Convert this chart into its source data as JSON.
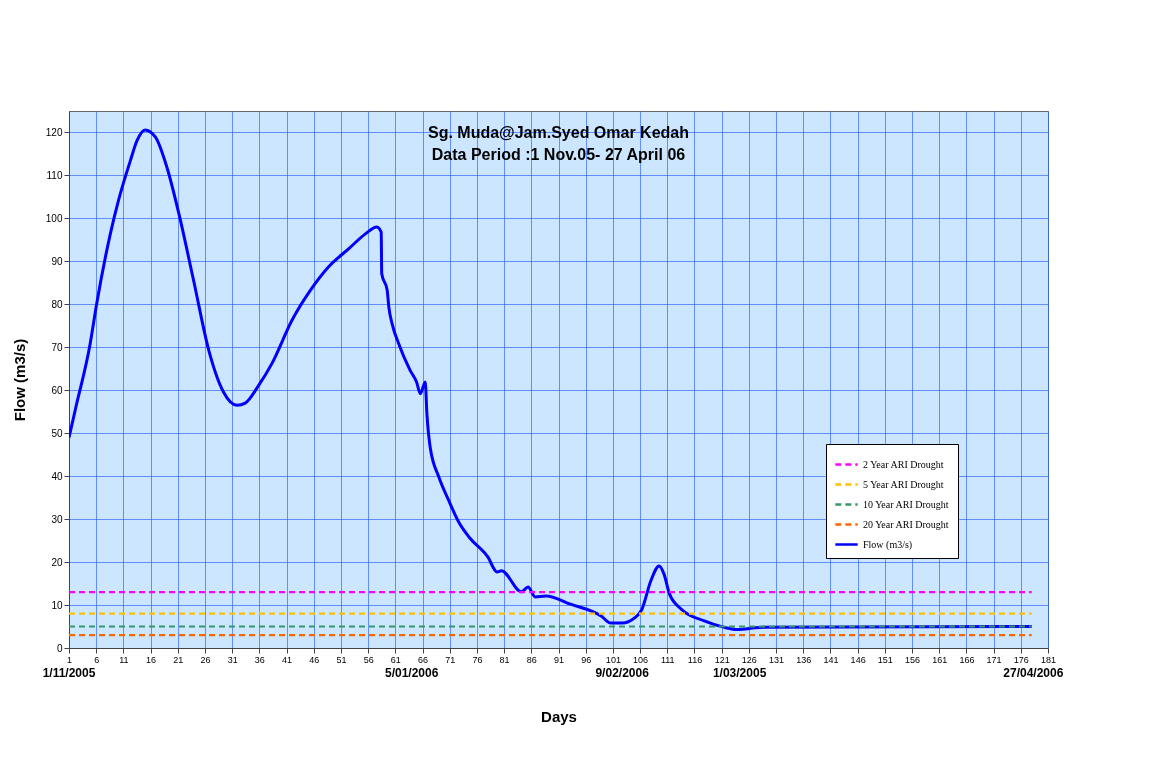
{
  "chart_data": {
    "type": "line",
    "title": "Sg. Muda@Jam.Syed Omar Kedah",
    "subtitle": "Data Period :1 Nov.05- 27 April 06",
    "xlabel": "Days",
    "ylabel": "Flow (m3/s)",
    "xlim": [
      1,
      181
    ],
    "xticks": [
      1,
      6,
      11,
      16,
      21,
      26,
      31,
      36,
      41,
      46,
      51,
      56,
      61,
      66,
      71,
      76,
      81,
      86,
      91,
      96,
      101,
      106,
      111,
      116,
      121,
      126,
      131,
      136,
      141,
      146,
      151,
      156,
      161,
      166,
      171,
      176,
      181
    ],
    "ylim": [
      0,
      125
    ],
    "yticks": [
      0,
      10,
      20,
      30,
      40,
      50,
      60,
      70,
      80,
      90,
      100,
      110,
      120
    ],
    "grid": true,
    "legend": "bottom right",
    "annotations": [
      "1/11/2005",
      "5/01/2006",
      "9/02/2006",
      "1/03/2005",
      "27/04/2006"
    ],
    "series": [
      {
        "name": "2 Year ARI Drought",
        "color": "#ff00ff",
        "line_style": "dashed",
        "x": [
          1,
          178
        ],
        "values": [
          13,
          13
        ]
      },
      {
        "name": "5 Year ARI Drought",
        "color": "#ffc000",
        "line_style": "dashed",
        "x": [
          1,
          178
        ],
        "values": [
          8,
          8
        ]
      },
      {
        "name": "10 Year ARI Drought",
        "color": "#339966",
        "line_style": "dashed",
        "x": [
          1,
          178
        ],
        "values": [
          5,
          5
        ]
      },
      {
        "name": "20 Year ARI Drought",
        "color": "#ff6600",
        "line_style": "dashed",
        "x": [
          1,
          178
        ],
        "values": [
          3,
          3
        ]
      },
      {
        "name": "Flow (m3/s)",
        "color": "#0000ff",
        "line_style": "solid",
        "x": [
          1,
          2.2,
          4.9,
          6.1,
          8.6,
          10.1,
          12.3,
          13.5,
          15,
          16.9,
          19,
          21.2,
          23.9,
          26.7,
          29.4,
          31.9,
          33.4,
          35.9,
          38.3,
          42,
          45.4,
          48.7,
          52.4,
          55.5,
          57.6,
          58.4,
          58.5,
          59.5,
          59.8,
          60.4,
          61.6,
          63.7,
          64.9,
          65.6,
          66.5,
          66.8,
          67.4,
          69,
          70.8,
          72.7,
          74.7,
          78,
          79.7,
          80.5,
          84.2,
          85.4,
          86.7,
          88.7,
          93.2,
          98.9,
          100.6,
          102.7,
          105,
          106.3,
          108,
          109.5,
          110.4,
          111.4,
          113.7,
          117.8,
          121.5,
          124,
          128,
          178
        ],
        "values": [
          49,
          55.7,
          70.9,
          80.2,
          96.4,
          104.2,
          113.5,
          118.1,
          120.6,
          118.9,
          111.9,
          101.1,
          85.6,
          69.3,
          59.6,
          56.5,
          57,
          61.2,
          66.2,
          76.3,
          83.3,
          88.7,
          92.9,
          96.4,
          98,
          96.8,
          87.1,
          83.3,
          79.4,
          75.5,
          70.9,
          64.7,
          61.9,
          59.2,
          61.9,
          54.6,
          46.8,
          39.8,
          34.4,
          29.2,
          25.6,
          21.2,
          17.7,
          18,
          13.1,
          14.2,
          11.9,
          12.1,
          10.2,
          7.4,
          5.8,
          5.8,
          7,
          8.9,
          15.7,
          19.1,
          17.2,
          12.6,
          8.9,
          6.3,
          4.8,
          4.3,
          4.8,
          5
        ]
      }
    ]
  }
}
